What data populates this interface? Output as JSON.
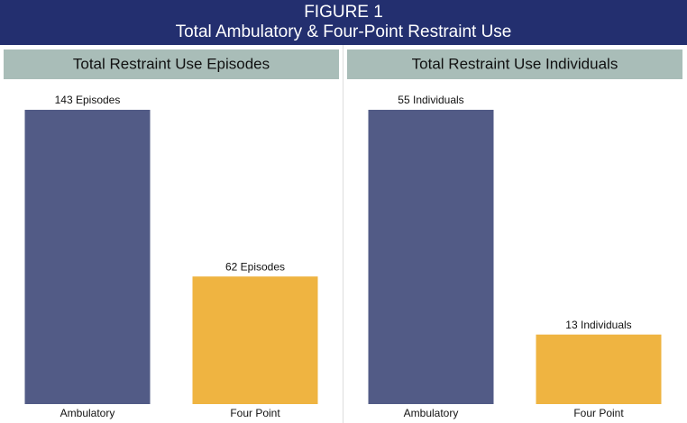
{
  "figure": {
    "label": "FIGURE 1",
    "title": "Total Ambulatory & Four-Point Restraint Use"
  },
  "chart_data": [
    {
      "type": "bar",
      "title": "Total Restraint Use Episodes",
      "categories": [
        "Ambulatory",
        "Four Point"
      ],
      "values": [
        143,
        62
      ],
      "value_labels": [
        "143 Episodes",
        "62 Episodes"
      ],
      "colors": [
        "#525b86",
        "#efb441"
      ]
    },
    {
      "type": "bar",
      "title": "Total Restraint Use Individuals",
      "categories": [
        "Ambulatory",
        "Four Point"
      ],
      "values": [
        55,
        13
      ],
      "value_labels": [
        "55 Individuals",
        "13 Individuals"
      ],
      "colors": [
        "#525b86",
        "#efb441"
      ]
    }
  ]
}
